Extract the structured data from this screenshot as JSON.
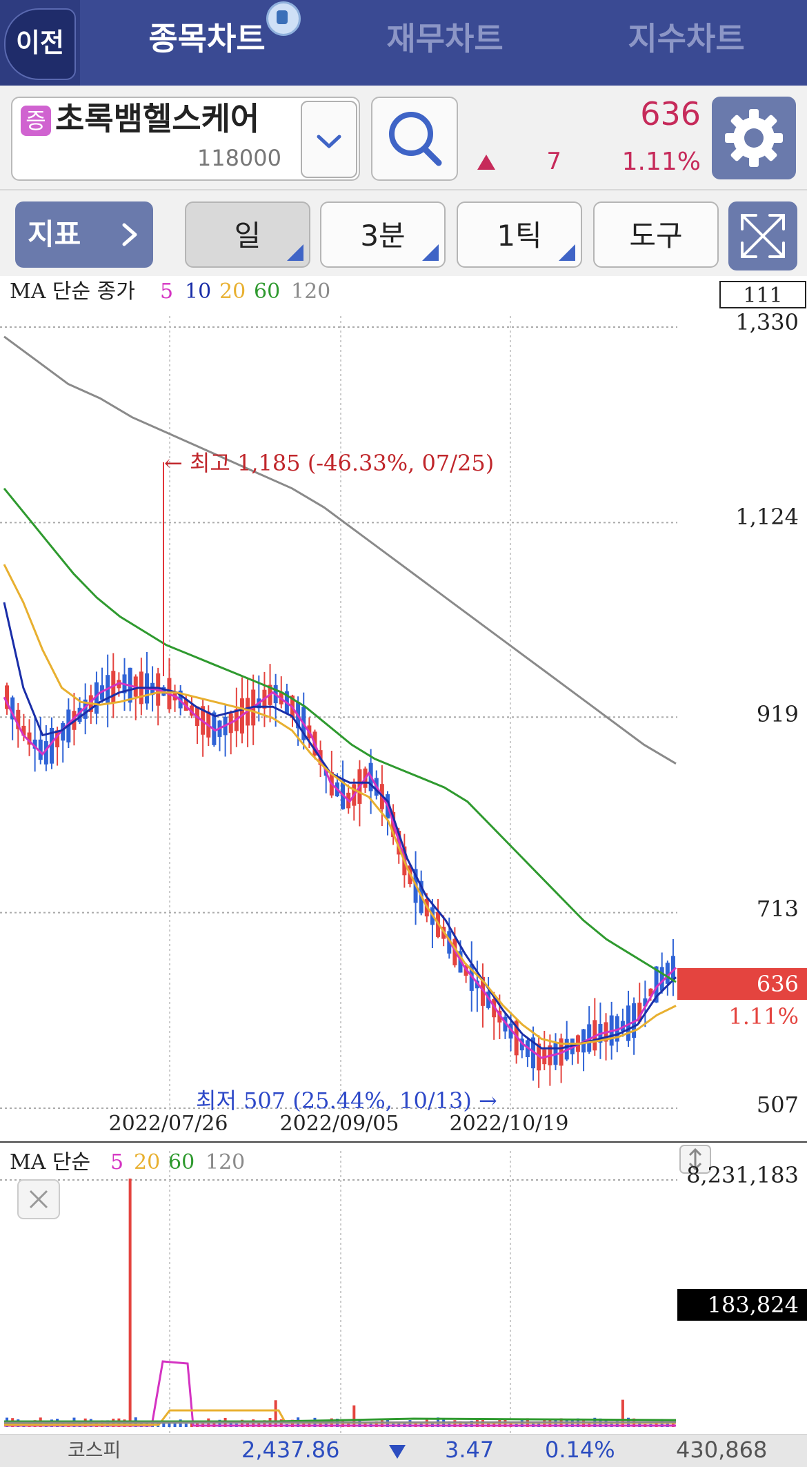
{
  "header": {
    "back_label": "이전",
    "tabs": [
      {
        "label": "종목차트",
        "active": true
      },
      {
        "label": "재무차트",
        "active": false
      },
      {
        "label": "지수차트",
        "active": false
      }
    ]
  },
  "stock": {
    "market_badge": "증",
    "name": "초록뱀헬스케어",
    "code": "118000",
    "price": "636",
    "change": "7",
    "change_pct": "1.11%",
    "change_direction": "up",
    "up_color": "#c62a5a"
  },
  "toolbar": {
    "indicator_label": "지표",
    "period_day": "일",
    "period_min": "3분",
    "period_tick": "1틱",
    "tools_label": "도구"
  },
  "price_chart": {
    "legend_prefix": "MA 단순 종가",
    "legend": [
      {
        "label": "5",
        "color": "#d433c2"
      },
      {
        "label": "10",
        "color": "#1a2ea8"
      },
      {
        "label": "20",
        "color": "#e8b030"
      },
      {
        "label": "60",
        "color": "#2f9a2f"
      },
      {
        "label": "120",
        "color": "#8a8a8a"
      }
    ],
    "count_box": "111",
    "y_ticks": [
      "1,330",
      "1,124",
      "919",
      "713",
      "507"
    ],
    "x_ticks": [
      "2022/07/26",
      "2022/09/05",
      "2022/10/19"
    ],
    "high_annotation": "← 최고 1,185 (-46.33%, 07/25)",
    "low_annotation": "최저 507 (25.44%, 10/13) →",
    "current_price": "636",
    "current_pct": "1.11%"
  },
  "volume_chart": {
    "legend_prefix": "MA 단순",
    "legend": [
      {
        "label": "5",
        "color": "#d433c2"
      },
      {
        "label": "20",
        "color": "#e8b030"
      },
      {
        "label": "60",
        "color": "#2f9a2f"
      },
      {
        "label": "120",
        "color": "#8a8a8a"
      }
    ],
    "top_value": "8,231,183",
    "current_volume": "183,824"
  },
  "footer": {
    "index_name": "코스피",
    "index_value": "2,437.86",
    "index_change": "3.47",
    "index_pct": "0.14%",
    "index_volume": "430,868",
    "index_direction": "down"
  },
  "chart_data": {
    "type": "candlestick",
    "ylim": [
      507,
      1330
    ],
    "y_ticks": [
      1330,
      1124,
      919,
      713,
      507
    ],
    "x_ticks": [
      "2022/07/26",
      "2022/09/05",
      "2022/10/19"
    ],
    "high": {
      "value": 1185,
      "date": "07/25",
      "pct": -46.33
    },
    "low": {
      "value": 507,
      "date": "10/13",
      "pct": 25.44
    },
    "last_close": 636,
    "series": [
      {
        "name": "5",
        "values": [
          940,
          900,
          880,
          905,
          925,
          945,
          955,
          950,
          948,
          940,
          920,
          905,
          915,
          930,
          945,
          930,
          900,
          850,
          830,
          860,
          825,
          760,
          720,
          690,
          655,
          630,
          600,
          575,
          560,
          565,
          575,
          585,
          590,
          600,
          635,
          655
        ]
      },
      {
        "name": "10",
        "values": [
          1040,
          950,
          900,
          905,
          920,
          935,
          945,
          950,
          950,
          945,
          930,
          920,
          925,
          930,
          930,
          920,
          890,
          860,
          850,
          850,
          830,
          770,
          730,
          705,
          670,
          640,
          610,
          585,
          570,
          570,
          575,
          580,
          585,
          595,
          625,
          645
        ]
      },
      {
        "name": "20",
        "values": [
          1080,
          1040,
          990,
          950,
          935,
          932,
          935,
          940,
          945,
          945,
          940,
          935,
          930,
          925,
          918,
          905,
          880,
          860,
          845,
          835,
          810,
          760,
          720,
          690,
          660,
          640,
          615,
          595,
          580,
          575,
          575,
          578,
          582,
          590,
          605,
          615
        ]
      },
      {
        "name": "60",
        "values": [
          1160,
          1130,
          1100,
          1070,
          1045,
          1025,
          1010,
          995,
          985,
          975,
          965,
          955,
          945,
          930,
          910,
          890,
          875,
          865,
          855,
          845,
          830,
          805,
          780,
          755,
          730,
          705,
          685,
          670,
          655,
          640
        ]
      },
      {
        "name": "120",
        "values": [
          1320,
          1295,
          1270,
          1255,
          1235,
          1220,
          1205,
          1190,
          1175,
          1160,
          1140,
          1115,
          1090,
          1065,
          1040,
          1015,
          990,
          965,
          940,
          915,
          890,
          870
        ]
      }
    ]
  }
}
